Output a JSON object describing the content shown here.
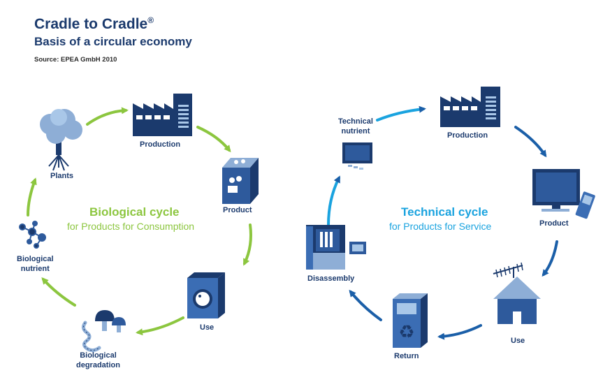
{
  "header": {
    "title": "Cradle to Cradle",
    "registered_mark": "®",
    "subtitle": "Basis of a circular economy",
    "source": "Source: EPEA GmbH 2010"
  },
  "biological": {
    "title": "Biological cycle",
    "subtitle": "for Products for Consumption",
    "color": "#8cc63f",
    "nodes": {
      "production": "Production",
      "product": "Product",
      "use": "Use",
      "degradation_line1": "Biological",
      "degradation_line2": "degradation",
      "nutrient_line1": "Biological",
      "nutrient_line2": "nutrient",
      "plants": "Plants"
    }
  },
  "technical": {
    "title": "Technical cycle",
    "subtitle": "for Products for Service",
    "color": "#1aa3df",
    "nodes": {
      "nutrient_line1": "Technical",
      "nutrient_line2": "nutrient",
      "production": "Production",
      "product": "Product",
      "use": "Use",
      "return": "Return",
      "disassembly": "Disassembly"
    }
  },
  "colors": {
    "dark_blue": "#1b3a6d",
    "mid_blue": "#2e5a9c",
    "light_blue": "#a9c7e8",
    "green": "#8cc63f",
    "cyan": "#1aa3df"
  }
}
